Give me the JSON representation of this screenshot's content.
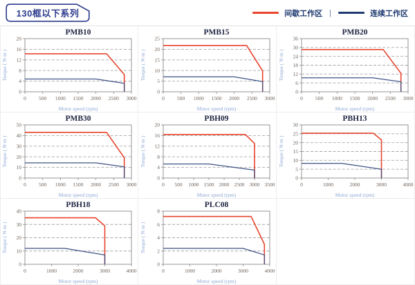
{
  "page": {
    "title": "130框以下系列",
    "legend": [
      {
        "label": "间歇工作区",
        "color": "#e8432c"
      },
      {
        "label": "连续工作区",
        "color": "#1e3a70"
      }
    ],
    "legend_separator": "|"
  },
  "chart_data": [
    {
      "type": "line",
      "title": "PMB10",
      "xlabel": "Motor speed (rpm)",
      "ylabel": "Torque ( N·m )",
      "xlim": [
        0,
        3000
      ],
      "xticks": [
        0,
        500,
        1000,
        1500,
        2000,
        2500,
        3000
      ],
      "ylim": [
        0,
        20
      ],
      "yticks": [
        0,
        4,
        8,
        12,
        16,
        20
      ],
      "grid": "horizontal-dashed",
      "legend_position": "none",
      "series": [
        {
          "name": "间歇工作区",
          "color": "#e8432c",
          "points": [
            [
              0,
              14.3
            ],
            [
              2300,
              14.3
            ],
            [
              2800,
              6.5
            ],
            [
              2800,
              0
            ]
          ]
        },
        {
          "name": "连续工作区",
          "color": "#3d5184",
          "points": [
            [
              0,
              4.8
            ],
            [
              2000,
              4.8
            ],
            [
              2800,
              3.2
            ],
            [
              2800,
              0
            ]
          ]
        }
      ]
    },
    {
      "type": "line",
      "title": "PMB15",
      "xlabel": "Motor speed (rpm)",
      "ylabel": "Torque ( N·m )",
      "xlim": [
        0,
        3000
      ],
      "xticks": [
        0,
        500,
        1000,
        1500,
        2000,
        2500,
        3000
      ],
      "ylim": [
        0,
        25
      ],
      "yticks": [
        0,
        5,
        10,
        15,
        20,
        25
      ],
      "grid": "horizontal-dashed",
      "legend_position": "none",
      "series": [
        {
          "name": "间歇工作区",
          "color": "#e8432c",
          "points": [
            [
              0,
              21.8
            ],
            [
              2350,
              21.8
            ],
            [
              2800,
              9.8
            ],
            [
              2800,
              0
            ]
          ]
        },
        {
          "name": "连续工作区",
          "color": "#3d5184",
          "points": [
            [
              0,
              7
            ],
            [
              2000,
              7
            ],
            [
              2800,
              4.8
            ],
            [
              2800,
              0
            ]
          ]
        }
      ]
    },
    {
      "type": "line",
      "title": "PMB20",
      "xlabel": "Motor speed (rpm)",
      "ylabel": "Torque ( N·m )",
      "xlim": [
        0,
        3000
      ],
      "xticks": [
        0,
        500,
        1000,
        1500,
        2000,
        2500,
        3000
      ],
      "ylim": [
        0,
        36
      ],
      "yticks": [
        0,
        6,
        12,
        18,
        24,
        30,
        36
      ],
      "grid": "horizontal-dashed",
      "legend_position": "none",
      "series": [
        {
          "name": "间歇工作区",
          "color": "#e8432c",
          "points": [
            [
              0,
              28.6
            ],
            [
              2300,
              28.6
            ],
            [
              2800,
              12.5
            ],
            [
              2800,
              0
            ]
          ]
        },
        {
          "name": "连续工作区",
          "color": "#3d5184",
          "points": [
            [
              0,
              9.5
            ],
            [
              2000,
              9.5
            ],
            [
              2800,
              6.8
            ],
            [
              2800,
              0
            ]
          ]
        }
      ]
    },
    {
      "type": "line",
      "title": "PMB30",
      "xlabel": "Motor speed (rpm)",
      "ylabel": "Torque ( N·m )",
      "xlim": [
        0,
        3000
      ],
      "xticks": [
        0,
        500,
        1000,
        1500,
        2000,
        2500,
        3000
      ],
      "ylim": [
        0,
        50
      ],
      "yticks": [
        0,
        10,
        20,
        30,
        40,
        50
      ],
      "grid": "horizontal-dashed",
      "legend_position": "none",
      "series": [
        {
          "name": "间歇工作区",
          "color": "#e8432c",
          "points": [
            [
              0,
              43
            ],
            [
              2300,
              43
            ],
            [
              2800,
              19
            ],
            [
              2800,
              0
            ]
          ]
        },
        {
          "name": "连续工作区",
          "color": "#3d5184",
          "points": [
            [
              0,
              14.3
            ],
            [
              2000,
              14.3
            ],
            [
              2800,
              10.5
            ],
            [
              2800,
              0
            ]
          ]
        }
      ]
    },
    {
      "type": "line",
      "title": "PBH09",
      "xlabel": "Motor speed (rpm)",
      "ylabel": "Torque ( N·m )",
      "xlim": [
        0,
        3500
      ],
      "xticks": [
        0,
        500,
        1000,
        1500,
        2000,
        2500,
        3000,
        3500
      ],
      "ylim": [
        0,
        20
      ],
      "yticks": [
        0,
        4,
        8,
        12,
        16,
        20
      ],
      "grid": "horizontal-dashed",
      "legend_position": "none",
      "series": [
        {
          "name": "间歇工作区",
          "color": "#e8432c",
          "points": [
            [
              0,
              16.4
            ],
            [
              2700,
              16.4
            ],
            [
              3000,
              13
            ],
            [
              3000,
              0
            ]
          ]
        },
        {
          "name": "连续工作区",
          "color": "#3d5184",
          "points": [
            [
              0,
              5.3
            ],
            [
              1500,
              5.3
            ],
            [
              3000,
              3
            ],
            [
              3000,
              0
            ]
          ]
        }
      ]
    },
    {
      "type": "line",
      "title": "PBH13",
      "xlabel": "Motor speed (rpm)",
      "ylabel": "Torque ( N·m )",
      "xlim": [
        0,
        4000
      ],
      "xticks": [
        0,
        1000,
        2000,
        3000,
        4000
      ],
      "ylim": [
        0,
        30
      ],
      "yticks": [
        0,
        5,
        10,
        15,
        20,
        25,
        30
      ],
      "grid": "horizontal-dashed",
      "legend_position": "none",
      "series": [
        {
          "name": "间歇工作区",
          "color": "#e8432c",
          "points": [
            [
              0,
              25.3
            ],
            [
              2700,
              25.3
            ],
            [
              3000,
              21.5
            ],
            [
              3000,
              0
            ]
          ]
        },
        {
          "name": "连续工作区",
          "color": "#3d5184",
          "points": [
            [
              0,
              8.3
            ],
            [
              1500,
              8.3
            ],
            [
              3000,
              5
            ],
            [
              3000,
              0
            ]
          ]
        }
      ]
    },
    {
      "type": "line",
      "title": "PBH18",
      "xlabel": "Motor speed (rpm)",
      "ylabel": "Torque ( N·m )",
      "xlim": [
        0,
        4000
      ],
      "xticks": [
        0,
        1000,
        2000,
        3000,
        4000
      ],
      "ylim": [
        0,
        40
      ],
      "yticks": [
        0,
        10,
        20,
        30,
        40
      ],
      "grid": "horizontal-dashed",
      "legend_position": "none",
      "series": [
        {
          "name": "间歇工作区",
          "color": "#e8432c",
          "points": [
            [
              0,
              35
            ],
            [
              2650,
              35
            ],
            [
              3000,
              29
            ],
            [
              3000,
              0
            ]
          ]
        },
        {
          "name": "连续工作区",
          "color": "#3d5184",
          "points": [
            [
              0,
              12
            ],
            [
              1500,
              12
            ],
            [
              3000,
              7
            ],
            [
              3000,
              0
            ]
          ]
        }
      ]
    },
    {
      "type": "line",
      "title": "PLC08",
      "xlabel": "Motor speed (rpm)",
      "ylabel": "Torque ( N·m )",
      "xlim": [
        0,
        4000
      ],
      "xticks": [
        0,
        1000,
        2000,
        3000,
        4000
      ],
      "ylim": [
        0,
        8
      ],
      "yticks": [
        0,
        2,
        4,
        6,
        8
      ],
      "grid": "horizontal-dashed",
      "legend_position": "none",
      "series": [
        {
          "name": "间歇工作区",
          "color": "#e8432c",
          "points": [
            [
              0,
              7.2
            ],
            [
              3300,
              7.2
            ],
            [
              3800,
              3
            ],
            [
              3800,
              0
            ]
          ]
        },
        {
          "name": "连续工作区",
          "color": "#3d5184",
          "points": [
            [
              0,
              2.4
            ],
            [
              3000,
              2.4
            ],
            [
              3800,
              1.4
            ],
            [
              3800,
              0
            ]
          ]
        }
      ]
    }
  ]
}
